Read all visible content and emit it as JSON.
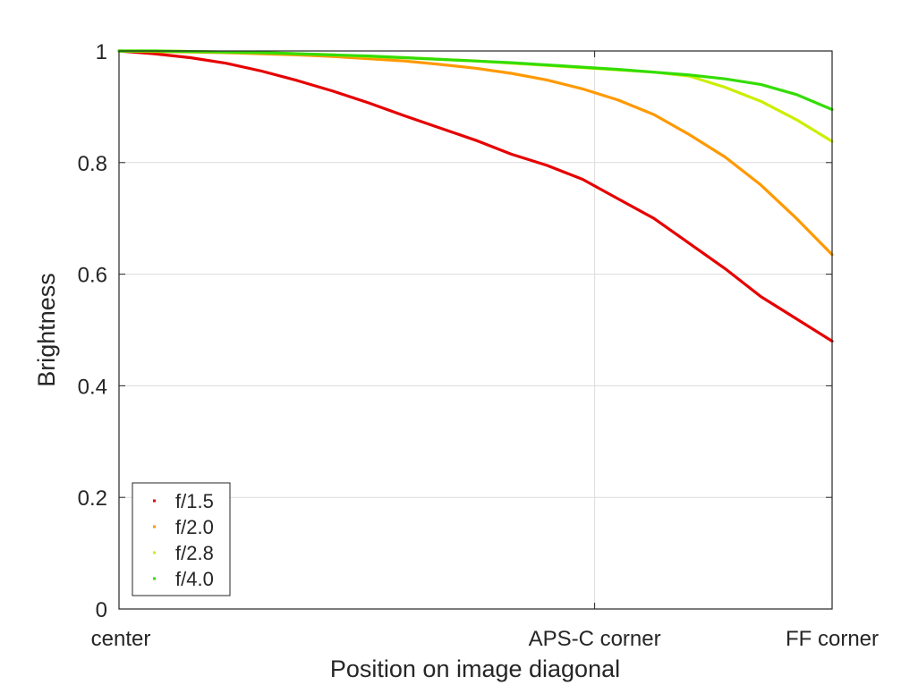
{
  "chart_data": {
    "type": "line",
    "title": "",
    "xlabel": "Position on image diagonal",
    "ylabel": "Brightness",
    "xlim": [
      0,
      1
    ],
    "ylim": [
      0,
      1
    ],
    "x_ticks": [
      {
        "value": 0,
        "label": "center"
      },
      {
        "value": 0.667,
        "label": "APS-C corner"
      },
      {
        "value": 1,
        "label": "FF corner"
      }
    ],
    "y_ticks": [
      {
        "value": 0,
        "label": "0"
      },
      {
        "value": 0.2,
        "label": "0.2"
      },
      {
        "value": 0.4,
        "label": "0.4"
      },
      {
        "value": 0.6,
        "label": "0.6"
      },
      {
        "value": 0.8,
        "label": "0.8"
      },
      {
        "value": 1,
        "label": "1"
      }
    ],
    "grid": true,
    "legend_position": "bottom-left",
    "x": [
      0,
      0.05,
      0.1,
      0.15,
      0.2,
      0.25,
      0.3,
      0.35,
      0.4,
      0.45,
      0.5,
      0.55,
      0.6,
      0.65,
      0.7,
      0.75,
      0.8,
      0.85,
      0.9,
      0.95,
      1.0
    ],
    "series": [
      {
        "name": "f/1.5",
        "color": "#e60000",
        "values": [
          1.0,
          0.995,
          0.988,
          0.978,
          0.964,
          0.947,
          0.928,
          0.907,
          0.884,
          0.862,
          0.84,
          0.815,
          0.795,
          0.77,
          0.735,
          0.7,
          0.655,
          0.61,
          0.56,
          0.52,
          0.48
        ]
      },
      {
        "name": "f/2.0",
        "color": "#ff9900",
        "values": [
          1.0,
          0.999,
          0.998,
          0.997,
          0.995,
          0.993,
          0.99,
          0.986,
          0.982,
          0.976,
          0.969,
          0.96,
          0.948,
          0.932,
          0.912,
          0.886,
          0.85,
          0.81,
          0.76,
          0.7,
          0.635
        ]
      },
      {
        "name": "f/2.8",
        "color": "#ccee00",
        "values": [
          1.0,
          1.0,
          0.999,
          0.998,
          0.997,
          0.995,
          0.993,
          0.99,
          0.988,
          0.985,
          0.982,
          0.978,
          0.974,
          0.97,
          0.966,
          0.962,
          0.955,
          0.935,
          0.91,
          0.877,
          0.838
        ]
      },
      {
        "name": "f/4.0",
        "color": "#33dd00",
        "values": [
          1.0,
          1.0,
          0.999,
          0.998,
          0.997,
          0.995,
          0.993,
          0.991,
          0.988,
          0.985,
          0.982,
          0.979,
          0.975,
          0.971,
          0.967,
          0.962,
          0.957,
          0.95,
          0.94,
          0.922,
          0.895
        ]
      }
    ]
  }
}
